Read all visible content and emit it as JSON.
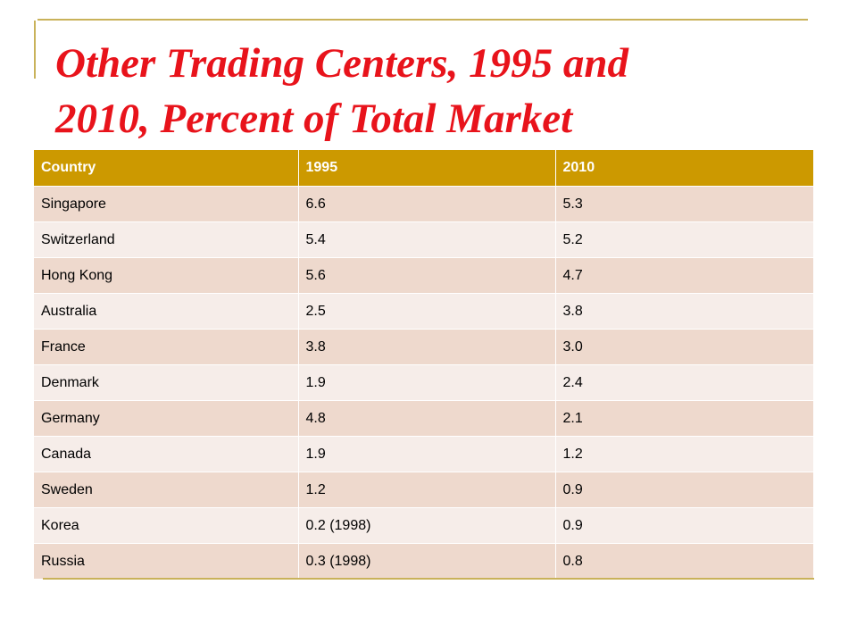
{
  "slide": {
    "title_line1": "Other Trading Centers, 1995 and",
    "title_line2": "2010, Percent of Total Market"
  },
  "table": {
    "columns": [
      "Country",
      "1995",
      "2010"
    ],
    "rows": [
      [
        "Singapore",
        "6.6",
        "5.3"
      ],
      [
        "Switzerland",
        "5.4",
        "5.2"
      ],
      [
        "Hong Kong",
        "5.6",
        "4.7"
      ],
      [
        "Australia",
        "2.5",
        "3.8"
      ],
      [
        "France",
        "3.8",
        "3.0"
      ],
      [
        "Denmark",
        "1.9",
        "2.4"
      ],
      [
        "Germany",
        "4.8",
        "2.1"
      ],
      [
        "Canada",
        "1.9",
        "1.2"
      ],
      [
        "Sweden",
        "1.2",
        "0.9"
      ],
      [
        "Korea",
        "0.2 (1998)",
        "0.9"
      ],
      [
        "Russia",
        "0.3 (1998)",
        "0.8"
      ]
    ]
  },
  "colors": {
    "title": "#e8131b",
    "header_bg": "#cc9900",
    "row_odd_bg": "#eed9cd",
    "row_even_bg": "#f6ede9",
    "accent_rule": "#c9b25a"
  }
}
